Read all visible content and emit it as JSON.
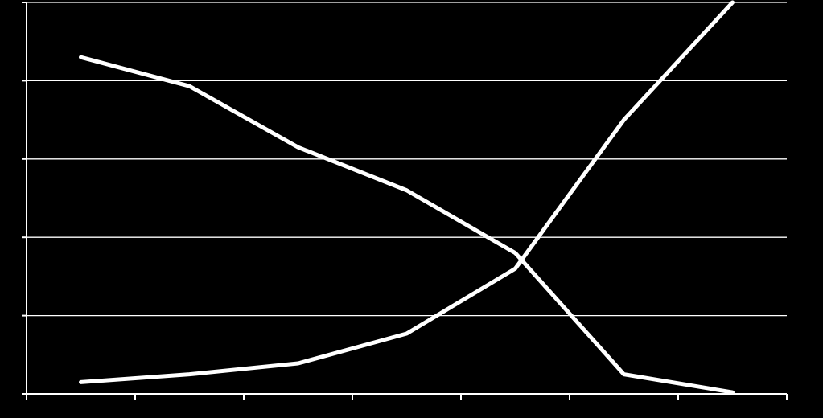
{
  "chart_data": {
    "type": "line",
    "title": "",
    "xlabel": "",
    "ylabel": "",
    "x": [
      1,
      2,
      3,
      4,
      5,
      6,
      7
    ],
    "xlim": [
      0.5,
      7.5
    ],
    "ylim": [
      0,
      5
    ],
    "grid": true,
    "legend": "none",
    "line_color": "#ffffff",
    "grid_color": "#ffffff",
    "background": "#000000",
    "series": [
      {
        "values": [
          4.3,
          3.93,
          3.15,
          2.6,
          1.8,
          0.25,
          0.02
        ]
      },
      {
        "values": [
          0.15,
          0.25,
          0.39,
          0.77,
          1.6,
          3.5,
          5.0
        ]
      }
    ]
  }
}
